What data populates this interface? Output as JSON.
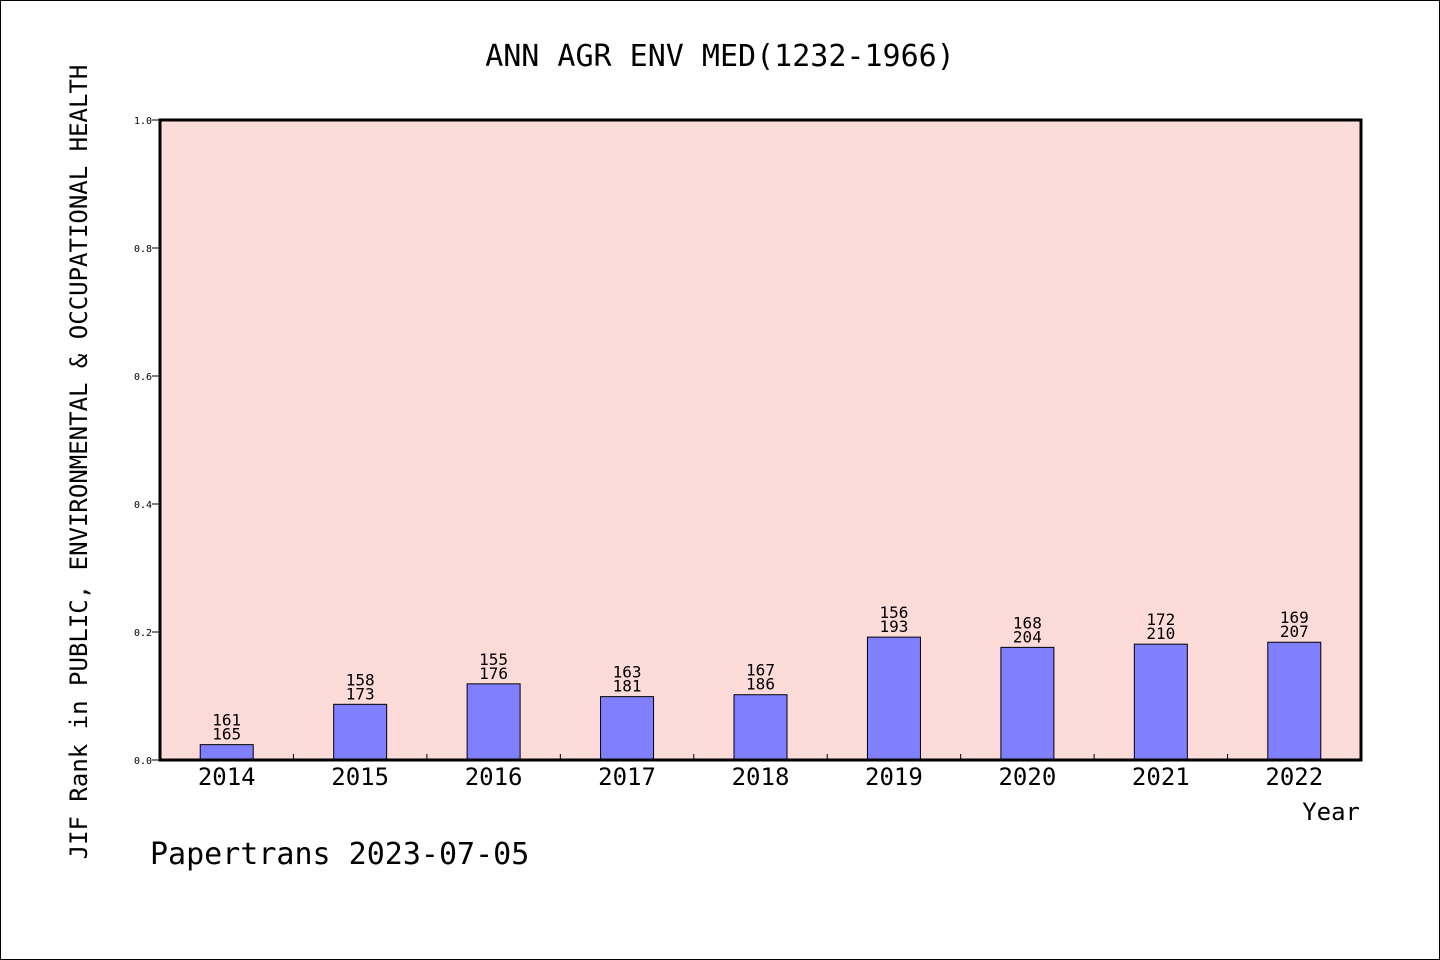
{
  "chart_data": {
    "type": "bar",
    "title": "ANN AGR ENV MED(1232-1966)",
    "xlabel": "Year",
    "ylabel": "JIF Rank in PUBLIC, ENVIRONMENTAL & OCCUPATIONAL HEALTH",
    "ylim": [
      0,
      1.0
    ],
    "yticks": [
      "0.0",
      "0.2",
      "0.4",
      "0.6",
      "0.8",
      "1.0"
    ],
    "categories": [
      "2014",
      "2015",
      "2016",
      "2017",
      "2018",
      "2019",
      "2020",
      "2021",
      "2022"
    ],
    "rank": [
      "161",
      "158",
      "155",
      "163",
      "167",
      "156",
      "168",
      "172",
      "169"
    ],
    "total": [
      "165",
      "173",
      "176",
      "181",
      "186",
      "193",
      "204",
      "210",
      "207"
    ],
    "values": [
      0.024,
      0.087,
      0.119,
      0.099,
      0.102,
      0.192,
      0.176,
      0.181,
      0.184
    ],
    "grid": false,
    "colors": {
      "plot_background": "#fddbd8",
      "bar_fill": "#8080ff",
      "bar_stroke": "#000000"
    }
  },
  "footer": {
    "text": "Papertrans 2023-07-05"
  }
}
